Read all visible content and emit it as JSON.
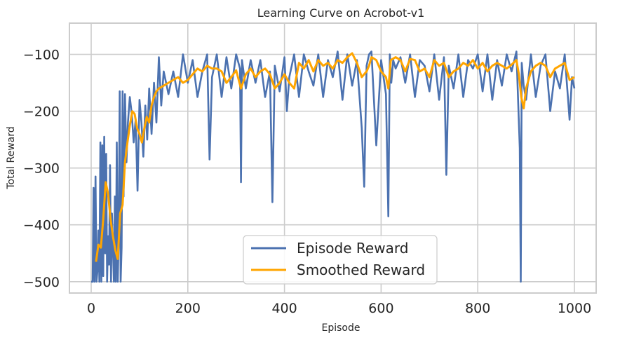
{
  "chart_data": {
    "type": "line",
    "title": "Learning Curve on Acrobot-v1",
    "xlabel": "Episode",
    "ylabel": "Total Reward",
    "xlim": [
      -45,
      1045
    ],
    "ylim": [
      -520,
      -45
    ],
    "xticks": [
      0,
      200,
      400,
      600,
      800,
      1000
    ],
    "yticks": [
      -100,
      -200,
      -300,
      -400,
      -500
    ],
    "grid": true,
    "legend_position": "bottom-center",
    "series": [
      {
        "name": "Episode Reward",
        "color": "#4c72b0",
        "x": [
          0,
          3,
          5,
          7,
          9,
          11,
          13,
          15,
          17,
          19,
          21,
          23,
          25,
          27,
          29,
          31,
          33,
          35,
          37,
          39,
          41,
          43,
          45,
          47,
          49,
          51,
          53,
          55,
          57,
          59,
          61,
          63,
          65,
          67,
          70,
          73,
          76,
          80,
          84,
          88,
          92,
          96,
          100,
          104,
          108,
          112,
          116,
          120,
          125,
          130,
          135,
          140,
          145,
          150,
          160,
          170,
          180,
          190,
          200,
          210,
          220,
          230,
          240,
          245,
          250,
          260,
          270,
          280,
          290,
          300,
          308,
          310,
          312,
          320,
          330,
          340,
          350,
          360,
          370,
          375,
          380,
          390,
          400,
          405,
          410,
          420,
          430,
          440,
          450,
          460,
          470,
          480,
          490,
          500,
          510,
          520,
          530,
          540,
          550,
          560,
          565,
          570,
          575,
          580,
          590,
          600,
          610,
          615,
          618,
          621,
          625,
          630,
          640,
          650,
          660,
          670,
          680,
          690,
          700,
          710,
          720,
          730,
          735,
          740,
          750,
          760,
          770,
          780,
          790,
          800,
          810,
          820,
          830,
          840,
          850,
          860,
          870,
          880,
          887,
          889,
          891,
          895,
          900,
          910,
          920,
          930,
          940,
          950,
          960,
          970,
          980,
          990,
          995,
          1000
        ],
        "values": [
          -500,
          -500,
          -335,
          -500,
          -315,
          -500,
          -480,
          -410,
          -500,
          -255,
          -500,
          -260,
          -490,
          -245,
          -450,
          -275,
          -500,
          -420,
          -470,
          -295,
          -500,
          -380,
          -440,
          -500,
          -350,
          -500,
          -255,
          -500,
          -420,
          -165,
          -500,
          -440,
          -165,
          -350,
          -170,
          -290,
          -220,
          -175,
          -205,
          -255,
          -215,
          -340,
          -180,
          -220,
          -280,
          -190,
          -250,
          -160,
          -240,
          -150,
          -220,
          -105,
          -190,
          -130,
          -170,
          -130,
          -175,
          -100,
          -150,
          -110,
          -175,
          -130,
          -100,
          -285,
          -140,
          -100,
          -175,
          -105,
          -160,
          -100,
          -125,
          -325,
          -110,
          -160,
          -110,
          -150,
          -110,
          -175,
          -130,
          -360,
          -120,
          -165,
          -105,
          -200,
          -140,
          -100,
          -175,
          -100,
          -130,
          -155,
          -100,
          -175,
          -110,
          -140,
          -95,
          -180,
          -100,
          -155,
          -110,
          -230,
          -333,
          -120,
          -100,
          -95,
          -260,
          -110,
          -170,
          -385,
          -100,
          -150,
          -110,
          -125,
          -105,
          -150,
          -100,
          -175,
          -110,
          -120,
          -165,
          -100,
          -180,
          -105,
          -312,
          -120,
          -160,
          -100,
          -175,
          -110,
          -125,
          -100,
          -165,
          -100,
          -180,
          -110,
          -155,
          -100,
          -130,
          -95,
          -265,
          -500,
          -115,
          -155,
          -180,
          -100,
          -175,
          -120,
          -100,
          -200,
          -130,
          -160,
          -100,
          -215,
          -140,
          -160
        ]
      },
      {
        "name": "Smoothed Reward",
        "color": "#ffa500",
        "x": [
          10,
          15,
          20,
          25,
          30,
          35,
          40,
          45,
          50,
          55,
          60,
          65,
          70,
          75,
          80,
          85,
          90,
          95,
          100,
          105,
          110,
          115,
          120,
          125,
          130,
          135,
          140,
          150,
          160,
          170,
          180,
          190,
          200,
          210,
          220,
          230,
          240,
          250,
          260,
          270,
          280,
          290,
          300,
          310,
          320,
          330,
          340,
          350,
          360,
          370,
          380,
          390,
          400,
          410,
          420,
          430,
          440,
          450,
          460,
          470,
          480,
          490,
          500,
          510,
          520,
          530,
          540,
          550,
          560,
          570,
          575,
          580,
          590,
          600,
          610,
          615,
          620,
          630,
          640,
          650,
          660,
          670,
          680,
          690,
          700,
          710,
          720,
          730,
          740,
          750,
          760,
          770,
          780,
          790,
          800,
          810,
          820,
          830,
          840,
          850,
          860,
          870,
          880,
          885,
          890,
          895,
          900,
          910,
          920,
          930,
          940,
          950,
          960,
          970,
          980,
          990,
          1000
        ],
        "values": [
          -465,
          -435,
          -440,
          -390,
          -325,
          -345,
          -390,
          -420,
          -445,
          -460,
          -380,
          -365,
          -290,
          -255,
          -225,
          -200,
          -205,
          -230,
          -240,
          -255,
          -230,
          -210,
          -220,
          -190,
          -175,
          -165,
          -160,
          -155,
          -150,
          -145,
          -140,
          -150,
          -145,
          -135,
          -125,
          -130,
          -120,
          -125,
          -125,
          -130,
          -150,
          -140,
          -128,
          -160,
          -135,
          -125,
          -140,
          -130,
          -125,
          -135,
          -160,
          -150,
          -135,
          -150,
          -160,
          -115,
          -125,
          -110,
          -130,
          -110,
          -120,
          -115,
          -125,
          -110,
          -115,
          -105,
          -98,
          -115,
          -140,
          -130,
          -120,
          -105,
          -110,
          -130,
          -140,
          -160,
          -110,
          -105,
          -110,
          -130,
          -108,
          -110,
          -130,
          -125,
          -140,
          -110,
          -120,
          -115,
          -140,
          -130,
          -125,
          -115,
          -120,
          -110,
          -125,
          -115,
          -130,
          -120,
          -115,
          -120,
          -125,
          -118,
          -110,
          -135,
          -175,
          -195,
          -160,
          -130,
          -120,
          -115,
          -120,
          -140,
          -125,
          -120,
          -115,
          -145,
          -140
        ]
      }
    ]
  }
}
